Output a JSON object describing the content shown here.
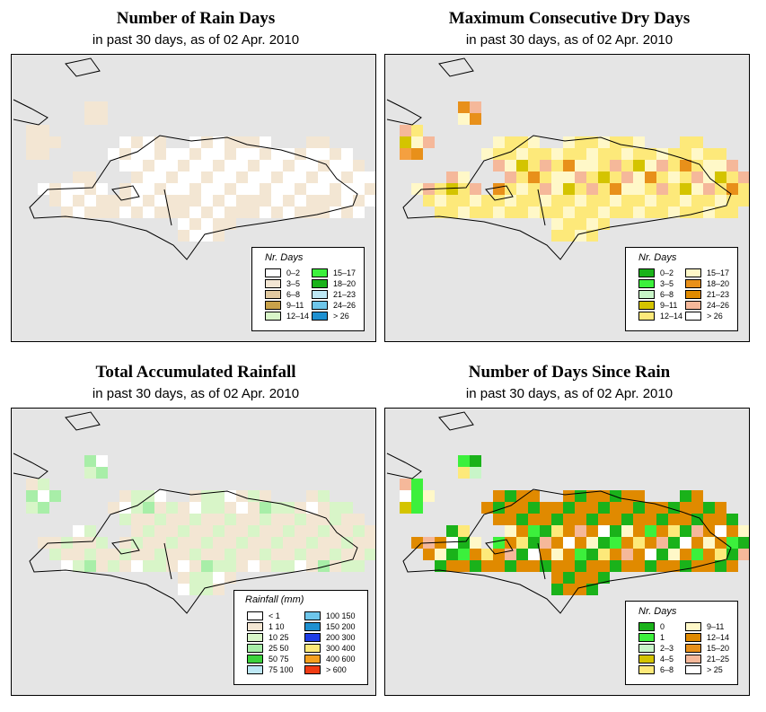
{
  "panels": [
    {
      "id": "rain-days",
      "title": "Number of Rain Days",
      "subtitle": "in past 30 days, as of  02 Apr. 2010",
      "map": {
        "fill_main": "#ffffff",
        "fill_alt": "#f3e6d3",
        "patches": [
          "#f3e6d3",
          "#f3e6d3",
          "#f3e6d3",
          "#f3e6d3",
          "#f3e6d3",
          "#f3e6d3",
          "#f3e6d3",
          "#f3e6d3",
          "#f3e6d3",
          "#f3e6d3"
        ]
      },
      "legend": {
        "title": "Nr. Days",
        "items": [
          {
            "label": "0–2",
            "color": "#ffffff"
          },
          {
            "label": "3–5",
            "color": "#f3e6d3"
          },
          {
            "label": "6–8",
            "color": "#e1c9a0"
          },
          {
            "label": "9–11",
            "color": "#c8a24a"
          },
          {
            "label": "12–14",
            "color": "#d8f5c8"
          },
          {
            "label": "15–17",
            "color": "#3cf03c"
          },
          {
            "label": "18–20",
            "color": "#1ab21a"
          },
          {
            "label": "21–23",
            "color": "#bde8f5"
          },
          {
            "label": "24–26",
            "color": "#6ec6ea"
          },
          {
            "label": "> 26",
            "color": "#1e90d0"
          }
        ]
      }
    },
    {
      "id": "dry-days",
      "title": "Maximum Consecutive Dry Days",
      "subtitle": "in past 30 days, as of  02 Apr. 2010",
      "map": {
        "fill_main": "#fde97a",
        "fill_alt": "#fff8c8",
        "patches": [
          "#f5a040",
          "#e8901a",
          "#f5b89a",
          "#fff8c8",
          "#e8901a",
          "#f5b89a",
          "#fde97a",
          "#d4c400",
          "#fff8c8",
          "#f5b89a"
        ]
      },
      "legend": {
        "title": "Nr. Days",
        "items": [
          {
            "label": "0–2",
            "color": "#1ab21a"
          },
          {
            "label": "3–5",
            "color": "#3cf03c"
          },
          {
            "label": "6–8",
            "color": "#c8f5c8"
          },
          {
            "label": "9–11",
            "color": "#d4c400"
          },
          {
            "label": "12–14",
            "color": "#fde97a"
          },
          {
            "label": "15–17",
            "color": "#fff8c8"
          },
          {
            "label": "18–20",
            "color": "#e8901a"
          },
          {
            "label": "21–23",
            "color": "#e08a00"
          },
          {
            "label": "24–26",
            "color": "#f5b89a"
          },
          {
            "label": "> 26",
            "color": "#ffffff"
          }
        ]
      }
    },
    {
      "id": "rainfall",
      "title": "Total Accumulated Rainfall",
      "subtitle": "in past 30 days, as of  02 Apr. 2010",
      "map": {
        "fill_main": "#f3e6d3",
        "fill_alt": "#d8f5c8",
        "patches": [
          "#a8eea8",
          "#d8f5c8",
          "#a8eea8",
          "#ffffff",
          "#d8f5c8",
          "#a8eea8",
          "#f3e6d3",
          "#d8f5c8",
          "#a8eea8",
          "#ffffff"
        ]
      },
      "legend": {
        "title": "Rainfall (mm)",
        "items": [
          {
            "label": "< 1",
            "color": "#ffffff"
          },
          {
            "label": "1  10",
            "color": "#f3e6d3"
          },
          {
            "label": "10  25",
            "color": "#d8f5c8"
          },
          {
            "label": "25  50",
            "color": "#a8eea8"
          },
          {
            "label": "50  75",
            "color": "#3cd23c"
          },
          {
            "label": "75  100",
            "color": "#bde8f5"
          },
          {
            "label": "100  150",
            "color": "#6ec6ea"
          },
          {
            "label": "150  200",
            "color": "#1e90d0"
          },
          {
            "label": "200  300",
            "color": "#1e3ce6"
          },
          {
            "label": "300  400",
            "color": "#fde97a"
          },
          {
            "label": "400  600",
            "color": "#f5a020"
          },
          {
            "label": "> 600",
            "color": "#f03c14"
          }
        ]
      }
    },
    {
      "id": "since-rain",
      "title": "Number of Days Since Rain",
      "subtitle": "in past 30 days, as of  02 Apr. 2010",
      "map": {
        "fill_main": "#e08a00",
        "fill_alt": "#1ab21a",
        "patches": [
          "#3cf03c",
          "#fff8c8",
          "#d4c400",
          "#3cf03c",
          "#1ab21a",
          "#fde97a",
          "#c8f5c8",
          "#f5b89a",
          "#3cf03c",
          "#ffffff"
        ]
      },
      "legend": {
        "title": "Nr. Days",
        "items": [
          {
            "label": "0",
            "color": "#1ab21a"
          },
          {
            "label": "1",
            "color": "#3cf03c"
          },
          {
            "label": "2–3",
            "color": "#c8f5c8"
          },
          {
            "label": "4–5",
            "color": "#d4c400"
          },
          {
            "label": "6–8",
            "color": "#fde97a"
          },
          {
            "label": "9–11",
            "color": "#fff8c8"
          },
          {
            "label": "12–14",
            "color": "#e08a00"
          },
          {
            "label": "15–20",
            "color": "#e8901a"
          },
          {
            "label": "21–25",
            "color": "#f5b89a"
          },
          {
            "label": "> 25",
            "color": "#ffffff"
          }
        ]
      }
    }
  ]
}
